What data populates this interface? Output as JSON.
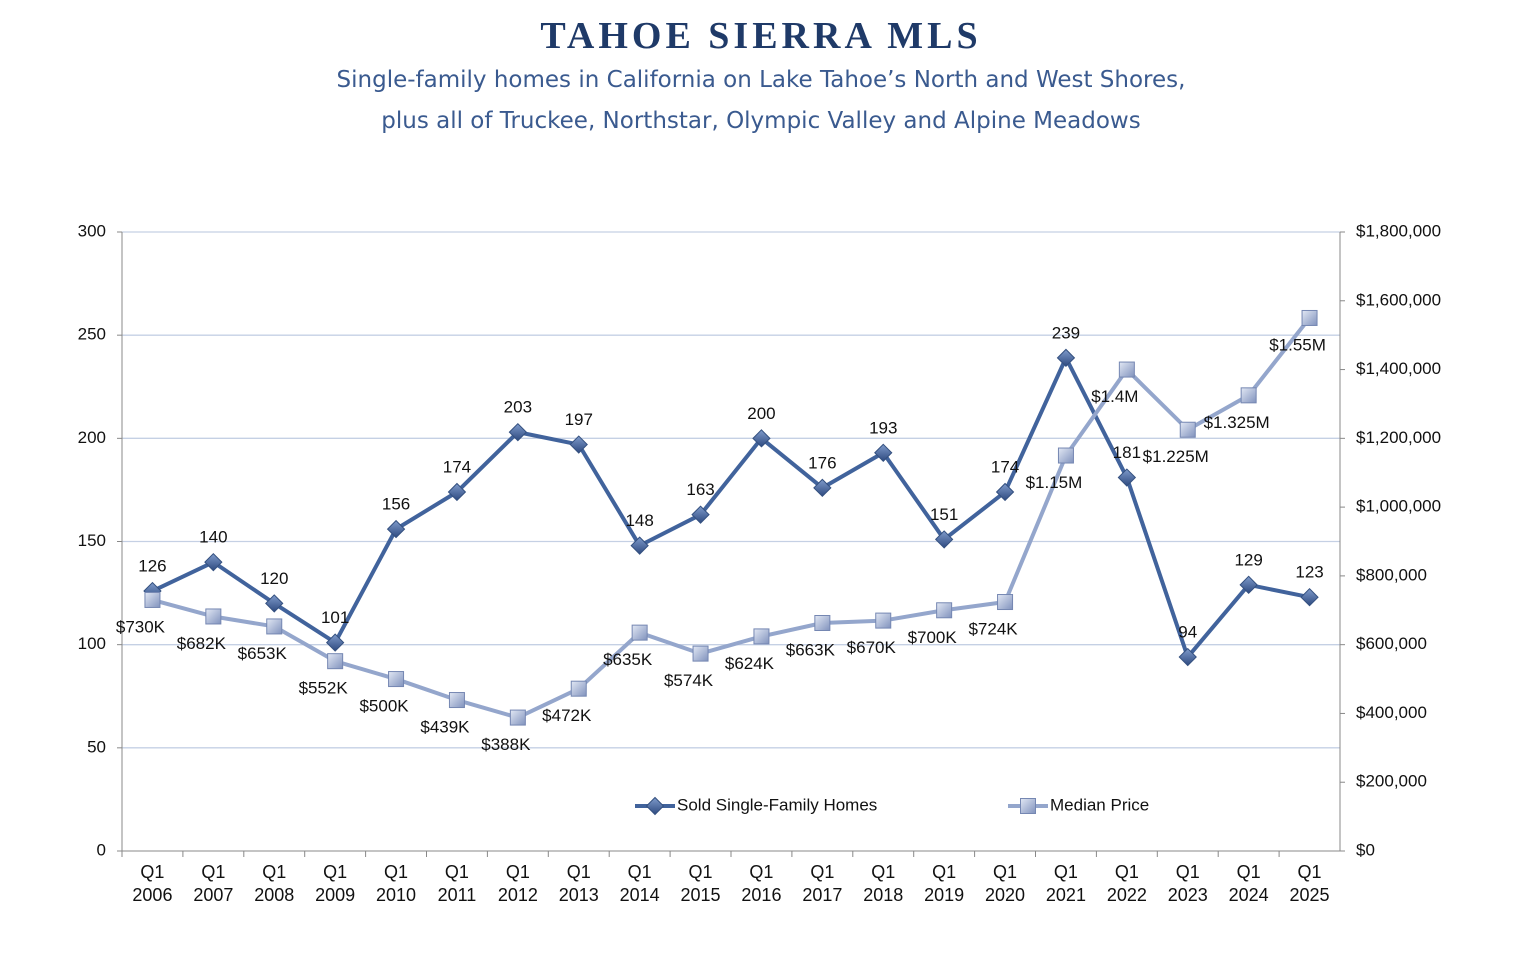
{
  "chart_data": {
    "type": "line",
    "title": "TAHOE SIERRA MLS",
    "subtitle": "Single-family homes in California on Lake Tahoe’s North and West Shores,\nplus all of Truckee, Northstar, Olympic Valley and Alpine Meadows",
    "categories": [
      "Q1\n2006",
      "Q1\n2007",
      "Q1\n2008",
      "Q1\n2009",
      "Q1\n2010",
      "Q1\n2011",
      "Q1\n2012",
      "Q1\n2013",
      "Q1\n2014",
      "Q1\n2015",
      "Q1\n2016",
      "Q1\n2017",
      "Q1\n2018",
      "Q1\n2019",
      "Q1\n2020",
      "Q1\n2021",
      "Q1\n2022",
      "Q1\n2023",
      "Q1\n2024",
      "Q1\n2025"
    ],
    "series": [
      {
        "name": "Sold Single-Family Homes",
        "color": "#41639c",
        "marker": "diamond",
        "values": [
          126,
          140,
          120,
          101,
          156,
          174,
          203,
          197,
          148,
          163,
          200,
          176,
          193,
          151,
          174,
          239,
          181,
          94,
          129,
          123
        ]
      },
      {
        "name": "Median Price",
        "color": "#94a6cc",
        "marker": "square",
        "axis": "y2",
        "values": [
          730000,
          682000,
          653000,
          552000,
          500000,
          439000,
          388000,
          472000,
          635000,
          574000,
          624000,
          663000,
          670000,
          700000,
          724000,
          1150000,
          1400000,
          1225000,
          1325000,
          1550000
        ],
        "value_labels": [
          "$730K",
          "$682K",
          "$653K",
          "$552K",
          "$500K",
          "$439K",
          "$388K",
          "$472K",
          "$635K",
          "$574K",
          "$624K",
          "$663K",
          "$670K",
          "$700K",
          "$724K",
          "$1.15M",
          "$1.4M",
          "$1.225M",
          "$1.325M",
          "$1.55M"
        ]
      }
    ],
    "ylim": [
      0,
      300
    ],
    "yticks": [
      0,
      50,
      100,
      150,
      200,
      250,
      300
    ],
    "y2lim": [
      0,
      1800000
    ],
    "y2ticks": [
      {
        "value": 0,
        "label": "$0"
      },
      {
        "value": 200000,
        "label": "$200,000"
      },
      {
        "value": 400000,
        "label": "$400,000"
      },
      {
        "value": 600000,
        "label": "$600,000"
      },
      {
        "value": 800000,
        "label": "$800,000"
      },
      {
        "value": 1000000,
        "label": "$1,000,000"
      },
      {
        "value": 1200000,
        "label": "$1,200,000"
      },
      {
        "value": 1400000,
        "label": "$1,400,000"
      },
      {
        "value": 1600000,
        "label": "$1,600,000"
      },
      {
        "value": 1800000,
        "label": "$1,800,000"
      }
    ],
    "grid": true,
    "legend": "bottom"
  }
}
